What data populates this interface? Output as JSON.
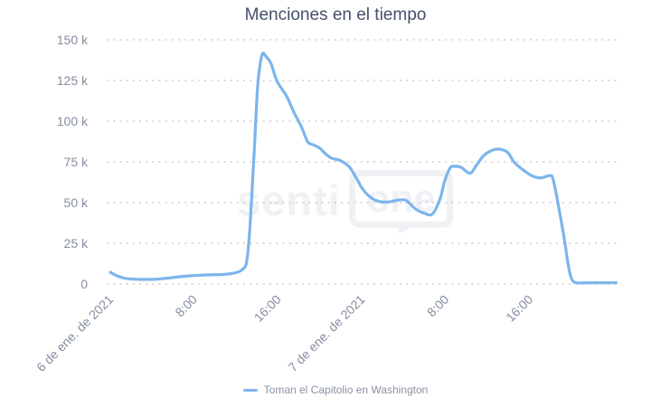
{
  "chart": {
    "watermark": {
      "left_text": "senti",
      "right_text": "one"
    }
  },
  "chart_data": {
    "type": "line",
    "title": "Menciones en el tiempo",
    "xlabel": "",
    "ylabel": "",
    "y_unit_suffix": "k",
    "values_unit": "thousands of mentions",
    "x_unit": "hours since 2021-01-06 00:00",
    "grid": "horizontal-dotted",
    "legend_position": "bottom-center",
    "xlim": [
      -0.35,
      48.35
    ],
    "ylim": [
      0,
      150
    ],
    "y_ticks": [
      {
        "v": 0,
        "label": "0"
      },
      {
        "v": 25,
        "label": "25 k"
      },
      {
        "v": 50,
        "label": "50 k"
      },
      {
        "v": 75,
        "label": "75 k"
      },
      {
        "v": 100,
        "label": "100 k"
      },
      {
        "v": 125,
        "label": "125 k"
      },
      {
        "v": 150,
        "label": "150 k"
      }
    ],
    "x_ticks": [
      {
        "t": 0,
        "label": "6 de ene. de 2021"
      },
      {
        "t": 8,
        "label": "8:00"
      },
      {
        "t": 16,
        "label": "16:00"
      },
      {
        "t": 24,
        "label": "7 de ene. de 2021"
      },
      {
        "t": 32,
        "label": "8:00"
      },
      {
        "t": 40,
        "label": "16:00"
      }
    ],
    "series": [
      {
        "name": "Toman el Capitolio en Washington",
        "color": "#7cb5ec",
        "points": [
          [
            0,
            7.2
          ],
          [
            0.7,
            4.8
          ],
          [
            1.5,
            3.4
          ],
          [
            2.5,
            2.9
          ],
          [
            3.5,
            2.8
          ],
          [
            4.5,
            3.0
          ],
          [
            5.5,
            3.6
          ],
          [
            6.5,
            4.4
          ],
          [
            7.5,
            5.0
          ],
          [
            8.5,
            5.4
          ],
          [
            9.5,
            5.6
          ],
          [
            10.5,
            5.8
          ],
          [
            11.3,
            6.2
          ],
          [
            12,
            7
          ],
          [
            12.6,
            9
          ],
          [
            13,
            14
          ],
          [
            13.3,
            35
          ],
          [
            13.7,
            80
          ],
          [
            14,
            118
          ],
          [
            14.25,
            134
          ],
          [
            14.5,
            141.5
          ],
          [
            14.8,
            140
          ],
          [
            15.3,
            135.5
          ],
          [
            15.9,
            124.4
          ],
          [
            16.8,
            115.2
          ],
          [
            17.6,
            104.1
          ],
          [
            18.2,
            96.7
          ],
          [
            18.8,
            87.4
          ],
          [
            19.3,
            85.6
          ],
          [
            19.9,
            83.7
          ],
          [
            20.5,
            80
          ],
          [
            21.1,
            77.2
          ],
          [
            21.9,
            75.9
          ],
          [
            22.8,
            71.7
          ],
          [
            23.6,
            63.3
          ],
          [
            24,
            58.7
          ],
          [
            24.8,
            53.2
          ],
          [
            25.6,
            50.7
          ],
          [
            26.5,
            50.4
          ],
          [
            27.4,
            51.5
          ],
          [
            28.2,
            51.3
          ],
          [
            29.1,
            46
          ],
          [
            29.9,
            43.5
          ],
          [
            30.7,
            43
          ],
          [
            31.4,
            52
          ],
          [
            31.9,
            64
          ],
          [
            32.4,
            71.5
          ],
          [
            32.8,
            72.3
          ],
          [
            33.4,
            71.8
          ],
          [
            34,
            68.8
          ],
          [
            34.4,
            68.4
          ],
          [
            34.9,
            73
          ],
          [
            35.5,
            78.3
          ],
          [
            36.1,
            81.3
          ],
          [
            36.7,
            82.7
          ],
          [
            37.3,
            82.6
          ],
          [
            37.9,
            80.6
          ],
          [
            38.5,
            74.8
          ],
          [
            39.4,
            69.8
          ],
          [
            40.3,
            66.1
          ],
          [
            41.1,
            65.2
          ],
          [
            41.8,
            66.5
          ],
          [
            42.2,
            64.3
          ],
          [
            42.8,
            44.8
          ],
          [
            43.3,
            26.3
          ],
          [
            43.6,
            13.3
          ],
          [
            43.9,
            4.1
          ],
          [
            44.3,
            0.9
          ],
          [
            45.2,
            0.7
          ],
          [
            46.2,
            0.8
          ],
          [
            47.2,
            0.7
          ],
          [
            48.2,
            0.8
          ]
        ]
      }
    ]
  }
}
